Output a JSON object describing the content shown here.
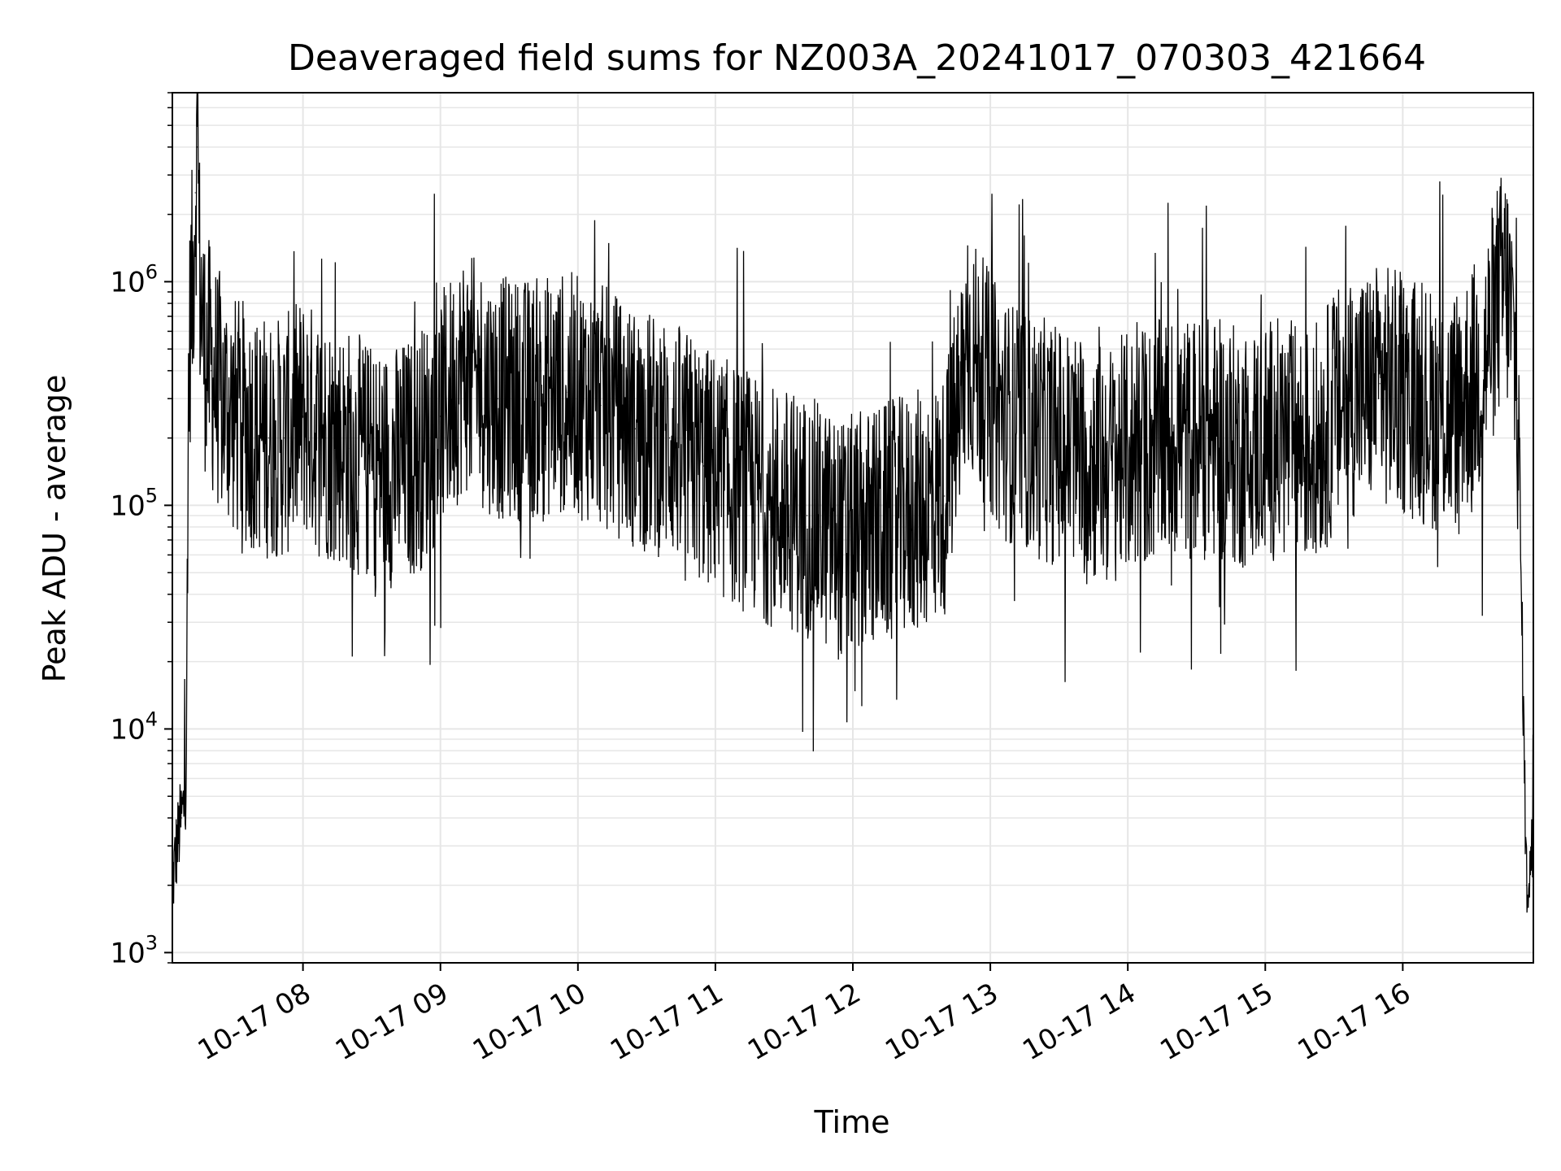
{
  "chart_data": {
    "type": "line",
    "title": "Deaveraged field sums for NZ003A_20241017_070303_421664",
    "xlabel": "Time",
    "ylabel": "Peak ADU - average",
    "yscale": "log",
    "ylim": [
      900,
      7000000
    ],
    "xlim": [
      "2024-10-17 07:03",
      "2024-10-17 16:57"
    ],
    "grid": true,
    "line_color": "#000000",
    "grid_color": "#e6e6e6",
    "x_ticks": [
      {
        "t": "2024-10-17 08:00",
        "label": "10-17 08"
      },
      {
        "t": "2024-10-17 09:00",
        "label": "10-17 09"
      },
      {
        "t": "2024-10-17 10:00",
        "label": "10-17 10"
      },
      {
        "t": "2024-10-17 11:00",
        "label": "10-17 11"
      },
      {
        "t": "2024-10-17 12:00",
        "label": "10-17 12"
      },
      {
        "t": "2024-10-17 13:00",
        "label": "10-17 13"
      },
      {
        "t": "2024-10-17 14:00",
        "label": "10-17 14"
      },
      {
        "t": "2024-10-17 15:00",
        "label": "10-17 15"
      },
      {
        "t": "2024-10-17 16:00",
        "label": "10-17 16"
      }
    ],
    "y_ticks": [
      {
        "value": 1000,
        "base": "10",
        "exp": "3"
      },
      {
        "value": 10000,
        "base": "10",
        "exp": "4"
      },
      {
        "value": 100000,
        "base": "10",
        "exp": "5"
      },
      {
        "value": 1000000,
        "base": "10",
        "exp": "6"
      }
    ],
    "series": [
      {
        "name": "",
        "x": [
          "2024-10-17 07:03",
          "2024-10-17 07:05",
          "2024-10-17 07:06",
          "2024-10-17 07:07",
          "2024-10-17 07:08",
          "2024-10-17 07:09",
          "2024-10-17 07:10",
          "2024-10-17 07:11",
          "2024-10-17 07:12",
          "2024-10-17 07:13",
          "2024-10-17 07:14",
          "2024-10-17 07:15",
          "2024-10-17 07:17",
          "2024-10-17 07:19",
          "2024-10-17 07:20",
          "2024-10-17 07:22",
          "2024-10-17 07:25",
          "2024-10-17 07:30",
          "2024-10-17 07:38",
          "2024-10-17 07:45",
          "2024-10-17 07:52",
          "2024-10-17 08:00",
          "2024-10-17 08:10",
          "2024-10-17 08:20",
          "2024-10-17 08:30",
          "2024-10-17 08:40",
          "2024-10-17 08:50",
          "2024-10-17 09:00",
          "2024-10-17 09:10",
          "2024-10-17 09:25",
          "2024-10-17 09:40",
          "2024-10-17 09:55",
          "2024-10-17 10:10",
          "2024-10-17 10:25",
          "2024-10-17 10:40",
          "2024-10-17 10:55",
          "2024-10-17 11:10",
          "2024-10-17 11:25",
          "2024-10-17 11:40",
          "2024-10-17 11:55",
          "2024-10-17 12:10",
          "2024-10-17 12:25",
          "2024-10-17 12:40",
          "2024-10-17 12:50",
          "2024-10-17 13:05",
          "2024-10-17 13:20",
          "2024-10-17 13:35",
          "2024-10-17 13:50",
          "2024-10-17 14:05",
          "2024-10-17 14:20",
          "2024-10-17 14:35",
          "2024-10-17 14:50",
          "2024-10-17 15:05",
          "2024-10-17 15:20",
          "2024-10-17 15:35",
          "2024-10-17 15:50",
          "2024-10-17 16:05",
          "2024-10-17 16:20",
          "2024-10-17 16:35",
          "2024-10-17 16:41",
          "2024-10-17 16:45",
          "2024-10-17 16:48",
          "2024-10-17 16:50",
          "2024-10-17 16:52",
          "2024-10-17 16:54",
          "2024-10-17 16:57"
        ],
        "y": [
          2000,
          3000,
          3500,
          4000,
          4500,
          6000,
          300000,
          800000,
          1000000,
          2500000,
          4000000,
          1000000,
          500000,
          450000,
          400000,
          350000,
          300000,
          250000,
          220000,
          200000,
          200000,
          250000,
          200000,
          180000,
          150000,
          150000,
          170000,
          250000,
          400000,
          300000,
          300000,
          320000,
          280000,
          220000,
          200000,
          150000,
          120000,
          100000,
          90000,
          70000,
          80000,
          90000,
          110000,
          500000,
          250000,
          200000,
          180000,
          150000,
          180000,
          200000,
          200000,
          180000,
          200000,
          180000,
          300000,
          350000,
          300000,
          250000,
          400000,
          800000,
          1000000,
          600000,
          300000,
          30000,
          2000,
          3000
        ]
      }
    ]
  }
}
